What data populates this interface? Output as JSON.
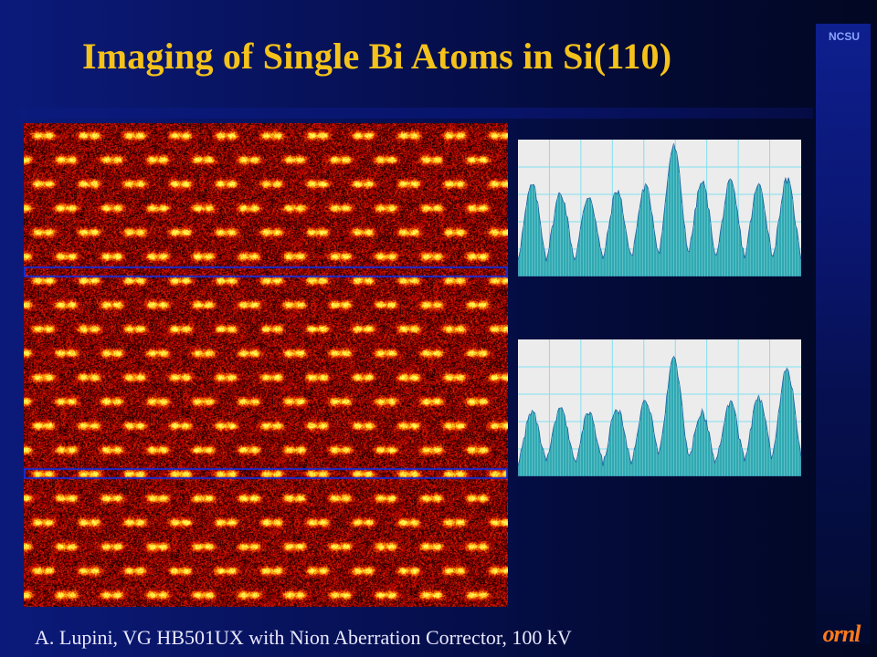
{
  "slide": {
    "title": "Imaging of Single Bi Atoms in Si(110)",
    "caption": "A. Lupini, VG HB501UX with Nion Aberration Corrector, 100 kV",
    "logo_top": "NCSU",
    "logo_bottom": "ornl"
  },
  "colors": {
    "title": "#f4c21a",
    "background": "#061052",
    "profile_fill": "#2fa9b2",
    "grid": "#7fe0f0",
    "scan_box": "#1b2bd0"
  },
  "image": {
    "description_icon": "stem-image-icon",
    "scan_lines": 2
  },
  "profiles": [
    {
      "peaks": [
        0.68,
        0.62,
        0.6,
        0.64,
        0.67,
        0.97,
        0.7,
        0.7,
        0.68,
        0.72
      ]
    },
    {
      "peaks": [
        0.48,
        0.5,
        0.47,
        0.5,
        0.57,
        0.88,
        0.47,
        0.55,
        0.58,
        0.8
      ]
    }
  ]
}
